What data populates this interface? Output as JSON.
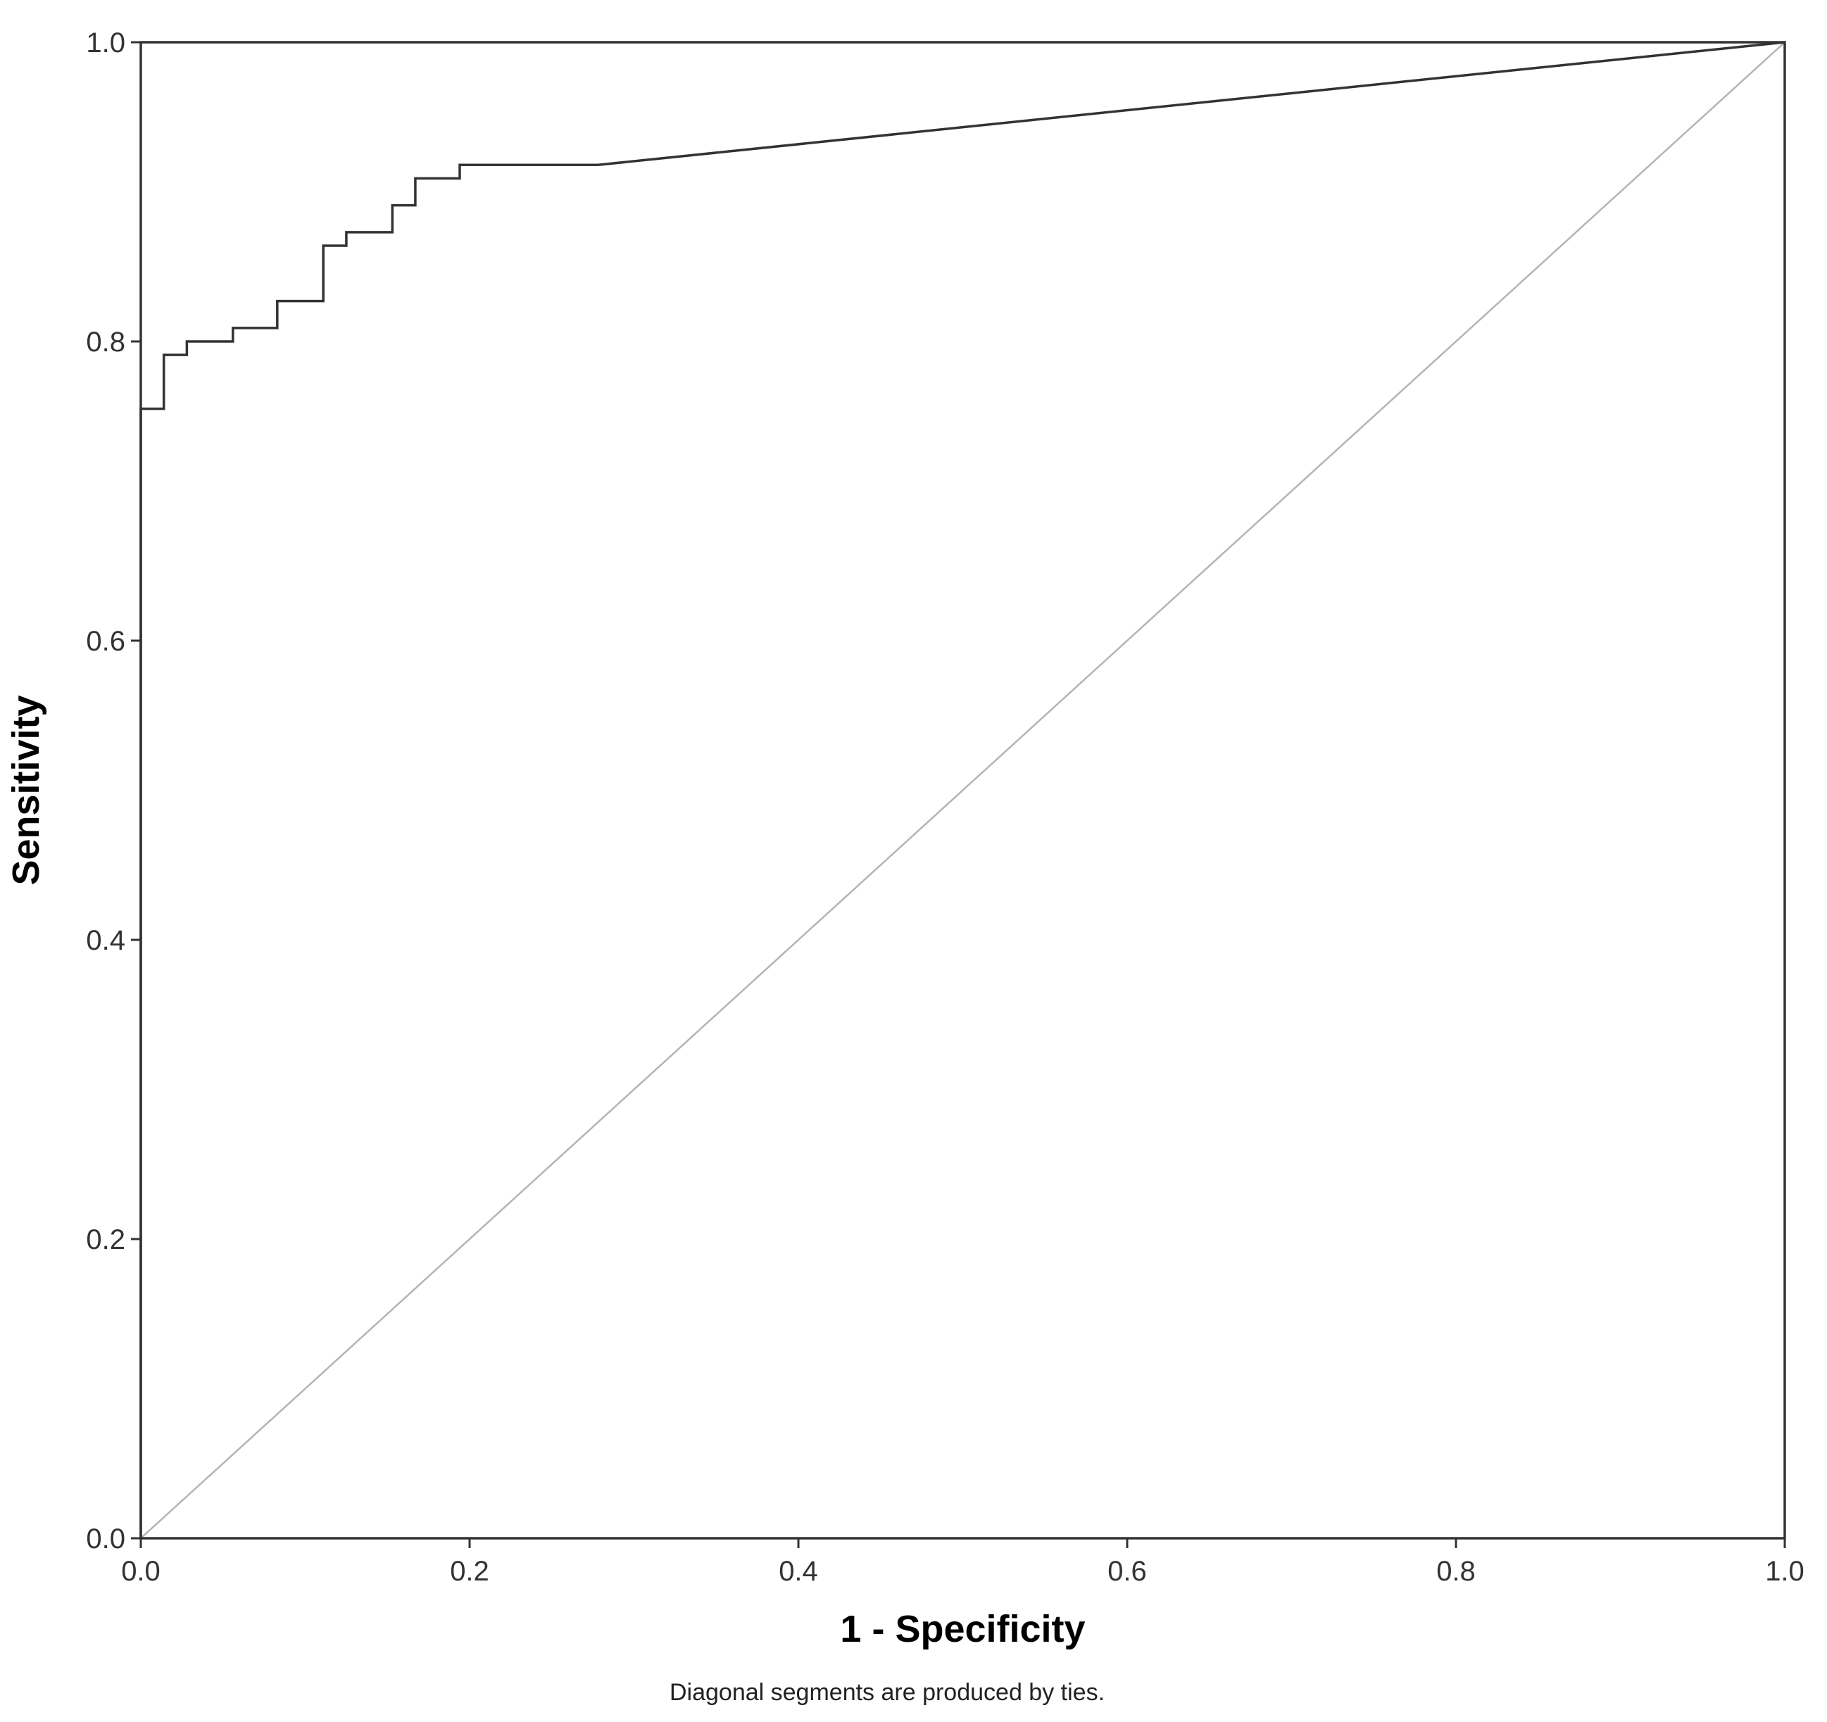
{
  "chart_data": {
    "type": "line",
    "title": "",
    "xlabel": "1 - Specificity",
    "ylabel": "Sensitivity",
    "xlim": [
      0.0,
      1.0
    ],
    "ylim": [
      0.0,
      1.0
    ],
    "x_ticks": [
      "0.0",
      "0.2",
      "0.4",
      "0.6",
      "0.8",
      "1.0"
    ],
    "y_ticks": [
      "0.0",
      "0.2",
      "0.4",
      "0.6",
      "0.8",
      "1.0"
    ],
    "grid": false,
    "legend": "none",
    "footnote": "Diagonal segments are produced by ties.",
    "series": [
      {
        "role": "roc-curve",
        "color": "#333333",
        "points": [
          [
            0.0,
            0.0
          ],
          [
            0.0,
            0.755
          ],
          [
            0.014,
            0.755
          ],
          [
            0.014,
            0.791
          ],
          [
            0.028,
            0.791
          ],
          [
            0.028,
            0.8
          ],
          [
            0.056,
            0.8
          ],
          [
            0.056,
            0.809
          ],
          [
            0.083,
            0.809
          ],
          [
            0.083,
            0.827
          ],
          [
            0.111,
            0.827
          ],
          [
            0.111,
            0.864
          ],
          [
            0.125,
            0.864
          ],
          [
            0.125,
            0.873
          ],
          [
            0.153,
            0.873
          ],
          [
            0.153,
            0.891
          ],
          [
            0.167,
            0.891
          ],
          [
            0.167,
            0.909
          ],
          [
            0.194,
            0.909
          ],
          [
            0.194,
            0.918
          ],
          [
            0.278,
            0.918
          ],
          [
            1.0,
            1.0
          ]
        ]
      },
      {
        "role": "reference-line",
        "color": "#b4b4b4",
        "points": [
          [
            0.0,
            0.0
          ],
          [
            1.0,
            1.0
          ]
        ]
      }
    ]
  }
}
